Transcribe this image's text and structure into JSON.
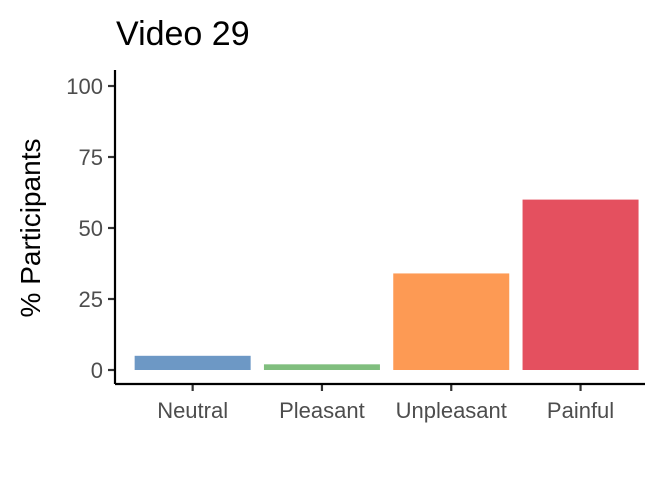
{
  "chart_data": {
    "type": "bar",
    "title": "Video 29",
    "xlabel": "",
    "ylabel": "% Participants",
    "categories": [
      "Neutral",
      "Pleasant",
      "Unpleasant",
      "Painful"
    ],
    "values": [
      5,
      2,
      34,
      60
    ],
    "colors": [
      "#6d98c5",
      "#80be7e",
      "#fd9a54",
      "#e4505f"
    ],
    "ylim": [
      0,
      100
    ],
    "yticks": [
      "0",
      "25",
      "50",
      "75",
      "100"
    ],
    "ytick_values": [
      0,
      25,
      50,
      75,
      100
    ],
    "grid": false,
    "legend": "none"
  }
}
